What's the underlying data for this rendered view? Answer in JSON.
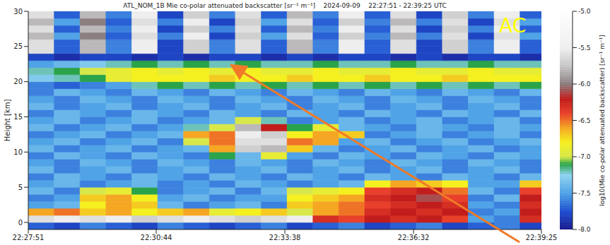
{
  "chart_data": {
    "type": "heatmap",
    "title": "ATL_NOM_1B Mie co-polar attenuated backscatter [sr⁻¹ m⁻¹]    2024-09-09    22:27:51 - 22:39:25 UTC",
    "y_label": "Height [km]",
    "annotations": [
      "AC"
    ],
    "xlim": [
      0,
      694
    ],
    "xticks": [
      {
        "value": 0,
        "label": "22:27:51"
      },
      {
        "value": 173,
        "label": "22:30:44"
      },
      {
        "value": 347,
        "label": "22:33:38"
      },
      {
        "value": 521,
        "label": "22:36:32"
      },
      {
        "value": 694,
        "label": "22:39:25"
      }
    ],
    "ylim": [
      -1,
      30
    ],
    "yticks": [
      0,
      5,
      10,
      15,
      20,
      25,
      30
    ],
    "x_bins": [
      0,
      35,
      70,
      105,
      140,
      175,
      210,
      245,
      280,
      315,
      350,
      385,
      420,
      455,
      490,
      525,
      560,
      595,
      630,
      665,
      694
    ],
    "y_bins": [
      -1,
      0,
      1,
      2,
      3,
      4,
      5,
      6,
      7,
      8,
      9,
      10,
      11,
      12,
      13,
      14,
      15,
      16,
      17,
      18,
      19,
      20,
      21,
      22,
      23,
      24,
      25,
      26,
      27,
      28,
      29,
      30
    ],
    "z": [
      [
        -7.7,
        -7.8,
        -7.6,
        -7.7,
        -7.8,
        -7.6,
        -7.7,
        -7.8,
        -7.7,
        -7.6,
        -7.8,
        -7.7,
        -7.6,
        -7.8,
        -7.7,
        -7.6,
        -7.8,
        -7.7,
        -7.6,
        -7.8
      ],
      [
        -5.6,
        -5.5,
        -5.6,
        -5.5,
        -5.7,
        -5.6,
        -5.5,
        -5.6,
        -5.7,
        -5.6,
        -5.5,
        -6.3,
        -6.4,
        -6.2,
        -6.3,
        -6.2,
        -6.4,
        -7.5,
        -7.6,
        -6.3
      ],
      [
        -6.6,
        -6.5,
        -6.7,
        -6.6,
        -6.8,
        -6.7,
        -6.6,
        -6.9,
        -6.8,
        -6.7,
        -7.0,
        -6.6,
        -6.5,
        -6.3,
        -6.2,
        -6.3,
        -6.2,
        -7.6,
        -7.5,
        -6.2
      ],
      [
        -7.5,
        -7.4,
        -6.8,
        -6.6,
        -6.7,
        -7.4,
        -7.6,
        -7.5,
        -7.4,
        -7.6,
        -6.7,
        -6.6,
        -6.5,
        -6.4,
        -6.3,
        -6.2,
        -6.3,
        -7.5,
        -7.6,
        -6.3
      ],
      [
        -7.6,
        -7.5,
        -6.7,
        -6.6,
        -6.8,
        -7.5,
        -7.4,
        -7.6,
        -7.5,
        -7.5,
        -6.8,
        -6.7,
        -6.6,
        -6.3,
        -6.2,
        -6.1,
        -6.4,
        -7.6,
        -7.4,
        -6.2
      ],
      [
        -7.4,
        -7.6,
        -7.0,
        -6.9,
        -7.1,
        -7.6,
        -7.5,
        -7.4,
        -7.6,
        -7.4,
        -7.0,
        -6.9,
        -6.8,
        -6.4,
        -6.3,
        -6.2,
        -6.5,
        -7.4,
        -7.6,
        -6.4
      ],
      [
        -7.5,
        -7.4,
        -7.6,
        -7.5,
        -7.4,
        -7.6,
        -7.5,
        -7.6,
        -7.4,
        -7.5,
        -7.6,
        -7.5,
        -7.4,
        -6.8,
        -6.6,
        -6.7,
        -6.8,
        -7.5,
        -7.5,
        -6.7
      ],
      [
        -7.6,
        -7.4,
        -7.5,
        -7.6,
        -7.4,
        -7.5,
        -7.6,
        -7.4,
        -7.5,
        -7.6,
        -7.4,
        -7.5,
        -7.6,
        -7.4,
        -7.5,
        -7.6,
        -7.4,
        -7.5,
        -7.6,
        -7.4
      ],
      [
        -7.4,
        -7.6,
        -7.5,
        -7.4,
        -7.6,
        -7.5,
        -7.4,
        -7.6,
        -7.5,
        -7.4,
        -7.6,
        -7.5,
        -7.4,
        -7.6,
        -7.5,
        -7.4,
        -7.6,
        -7.5,
        -7.4,
        -7.6
      ],
      [
        -7.5,
        -7.6,
        -7.4,
        -7.5,
        -7.6,
        -7.4,
        -7.5,
        -7.6,
        -7.4,
        -7.5,
        -7.6,
        -7.4,
        -7.5,
        -7.6,
        -7.4,
        -7.5,
        -7.6,
        -7.4,
        -7.5,
        -7.6
      ],
      [
        -7.6,
        -7.4,
        -7.5,
        -7.6,
        -7.4,
        -7.5,
        -7.6,
        -7.1,
        -7.4,
        -6.9,
        -7.5,
        -7.6,
        -7.4,
        -7.5,
        -7.6,
        -7.4,
        -7.5,
        -7.6,
        -7.4,
        -7.5
      ],
      [
        -7.4,
        -7.6,
        -7.5,
        -7.4,
        -7.6,
        -7.5,
        -7.4,
        -6.6,
        -5.7,
        -5.8,
        -6.7,
        -7.4,
        -7.6,
        -7.5,
        -7.4,
        -7.6,
        -7.5,
        -7.4,
        -7.6,
        -7.5
      ],
      [
        -7.5,
        -7.4,
        -7.6,
        -7.5,
        -7.4,
        -7.6,
        -7.0,
        -6.5,
        -5.6,
        -5.6,
        -6.5,
        -6.6,
        -7.5,
        -7.4,
        -7.6,
        -7.5,
        -7.4,
        -7.6,
        -7.5,
        -7.4
      ],
      [
        -7.6,
        -7.5,
        -7.4,
        -7.6,
        -7.5,
        -7.4,
        -6.6,
        -6.5,
        -5.5,
        -5.7,
        -6.8,
        -6.6,
        -6.7,
        -7.6,
        -7.5,
        -7.4,
        -7.6,
        -7.5,
        -7.4,
        -7.6
      ],
      [
        -7.4,
        -7.6,
        -7.5,
        -7.4,
        -7.6,
        -7.5,
        -7.2,
        -7.0,
        -5.8,
        -6.2,
        -7.1,
        -6.9,
        -7.4,
        -7.5,
        -7.6,
        -7.4,
        -7.5,
        -7.6,
        -7.4,
        -7.5
      ],
      [
        -7.5,
        -7.4,
        -7.6,
        -7.5,
        -7.4,
        -7.6,
        -7.5,
        -7.4,
        -7.0,
        -7.2,
        -7.6,
        -7.5,
        -7.4,
        -7.6,
        -7.5,
        -7.4,
        -7.6,
        -7.5,
        -7.4,
        -7.6
      ],
      [
        -7.6,
        -7.4,
        -7.5,
        -7.6,
        -7.4,
        -7.5,
        -7.6,
        -7.4,
        -7.5,
        -7.6,
        -7.4,
        -7.5,
        -7.6,
        -7.4,
        -7.5,
        -7.6,
        -7.4,
        -7.5,
        -7.6,
        -7.4
      ],
      [
        -7.4,
        -7.6,
        -7.5,
        -7.4,
        -7.6,
        -7.5,
        -7.4,
        -7.6,
        -7.5,
        -7.4,
        -7.6,
        -7.5,
        -7.4,
        -7.6,
        -7.5,
        -7.4,
        -7.6,
        -7.5,
        -7.4,
        -7.6
      ],
      [
        -7.5,
        -7.6,
        -7.4,
        -7.5,
        -7.6,
        -7.4,
        -7.5,
        -7.6,
        -7.4,
        -7.5,
        -7.6,
        -7.4,
        -7.5,
        -7.6,
        -7.4,
        -7.5,
        -7.6,
        -7.4,
        -7.5,
        -7.6
      ],
      [
        -7.6,
        -7.4,
        -7.5,
        -7.6,
        -7.4,
        -7.5,
        -7.6,
        -7.4,
        -7.5,
        -7.6,
        -7.4,
        -7.5,
        -7.6,
        -7.4,
        -7.5,
        -7.6,
        -7.4,
        -7.5,
        -7.6,
        -7.4
      ],
      [
        -7.6,
        -7.7,
        -7.6,
        -7.5,
        -7.2,
        -7.1,
        -7.2,
        -7.1,
        -7.2,
        -7.1,
        -7.2,
        -7.1,
        -7.2,
        -7.1,
        -7.2,
        -7.1,
        -7.2,
        -7.1,
        -7.2,
        -7.1
      ],
      [
        -7.3,
        -7.2,
        -7.1,
        -6.9,
        -6.8,
        -6.8,
        -6.8,
        -6.7,
        -6.8,
        -6.8,
        -6.7,
        -6.8,
        -6.8,
        -6.7,
        -6.8,
        -6.8,
        -6.7,
        -6.8,
        -6.8,
        -6.8
      ],
      [
        -7.2,
        -7.1,
        -7.0,
        -6.9,
        -6.8,
        -6.9,
        -6.8,
        -6.9,
        -6.8,
        -6.9,
        -6.9,
        -6.8,
        -6.9,
        -6.9,
        -6.8,
        -6.9,
        -6.9,
        -6.8,
        -6.9,
        -6.9
      ],
      [
        -7.5,
        -7.4,
        -7.3,
        -7.2,
        -7.1,
        -7.2,
        -7.1,
        -7.2,
        -7.1,
        -7.2,
        -7.2,
        -7.1,
        -7.2,
        -7.2,
        -7.1,
        -7.2,
        -7.2,
        -7.1,
        -7.2,
        -7.2
      ],
      [
        -7.8,
        -7.9,
        -7.8,
        -7.8,
        -7.9,
        -7.8,
        -7.9,
        -7.8,
        -7.8,
        -7.9,
        -7.8,
        -7.9,
        -7.8,
        -7.8,
        -7.9,
        -7.8,
        -7.9,
        -7.8,
        -7.8,
        -7.9
      ],
      [
        -5.6,
        -7.7,
        -5.8,
        -7.6,
        -5.5,
        -7.8,
        -5.7,
        -7.6,
        -5.6,
        -7.7,
        -5.8,
        -7.6,
        -5.5,
        -7.7,
        -5.6,
        -7.8,
        -5.7,
        -7.6,
        -5.5,
        -7.7
      ],
      [
        -5.6,
        -7.7,
        -5.8,
        -7.6,
        -5.5,
        -7.8,
        -5.7,
        -7.6,
        -5.6,
        -7.7,
        -5.8,
        -7.6,
        -5.5,
        -7.7,
        -5.6,
        -7.8,
        -5.7,
        -7.6,
        -5.5,
        -7.7
      ],
      [
        -5.8,
        -7.5,
        -6.0,
        -7.7,
        -5.6,
        -7.6,
        -5.5,
        -7.8,
        -5.7,
        -7.5,
        -5.6,
        -7.7,
        -5.7,
        -7.6,
        -5.8,
        -7.6,
        -5.6,
        -7.8,
        -5.6,
        -7.5
      ],
      [
        -5.6,
        -7.7,
        -5.8,
        -7.6,
        -5.5,
        -7.8,
        -5.7,
        -7.6,
        -5.6,
        -7.7,
        -5.8,
        -7.6,
        -5.5,
        -7.7,
        -5.6,
        -7.8,
        -5.7,
        -7.6,
        -5.5,
        -7.7
      ],
      [
        -5.8,
        -7.5,
        -6.0,
        -7.7,
        -5.6,
        -7.6,
        -5.5,
        -7.8,
        -5.7,
        -7.5,
        -5.6,
        -7.7,
        -5.7,
        -7.6,
        -5.8,
        -7.6,
        -5.6,
        -7.8,
        -5.6,
        -7.5
      ],
      [
        -5.6,
        -7.7,
        -5.8,
        -7.6,
        -5.5,
        -7.8,
        -5.7,
        -7.6,
        -5.6,
        -7.7,
        -5.8,
        -7.6,
        -5.5,
        -7.7,
        -5.6,
        -7.8,
        -5.7,
        -7.6,
        -5.5,
        -7.7
      ]
    ],
    "colorbar": {
      "label": "log10(Mie co-polar attenuated backscatter) [sr⁻¹ m⁻¹]",
      "range": [
        -8,
        -5
      ],
      "ticks": [
        {
          "value": -5,
          "label": "-5.0"
        },
        {
          "value": -5.5,
          "label": "-5.5"
        },
        {
          "value": -6,
          "label": "-6.0"
        },
        {
          "value": -6.5,
          "label": "-6.5"
        },
        {
          "value": -7,
          "label": "-7.0"
        },
        {
          "value": -7.5,
          "label": "-7.5"
        },
        {
          "value": -8,
          "label": "-8.0"
        }
      ]
    }
  }
}
